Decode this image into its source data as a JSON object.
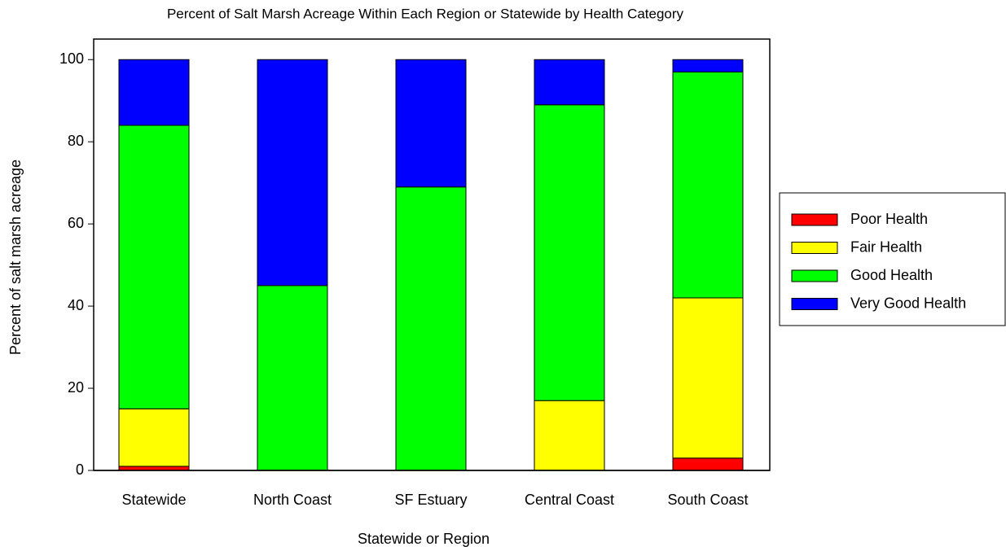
{
  "chart_data": {
    "type": "stacked_bar",
    "title": "Percent of Salt Marsh Acreage Within Each Region or Statewide by Health Category",
    "x_label": "Statewide or Region",
    "y_label": "Percent of salt marsh acreage",
    "categories": [
      "Statewide",
      "North Coast",
      "SF Estuary",
      "Central Coast",
      "South Coast"
    ],
    "series": [
      {
        "name": "Poor Health",
        "color": "#ff0000",
        "values": [
          1,
          0,
          0,
          0,
          3
        ]
      },
      {
        "name": "Fair Health",
        "color": "#ffff00",
        "values": [
          14,
          0,
          0,
          17,
          39
        ]
      },
      {
        "name": "Good Health",
        "color": "#00ff00",
        "values": [
          69,
          45,
          69,
          72,
          55
        ]
      },
      {
        "name": "Very Good Health",
        "color": "#0000ff",
        "values": [
          16,
          55,
          31,
          11,
          3
        ]
      }
    ],
    "ylim": [
      0,
      105
    ],
    "yticks": [
      0,
      20,
      40,
      60,
      80,
      100
    ],
    "grid": false,
    "legend_position": "right"
  }
}
